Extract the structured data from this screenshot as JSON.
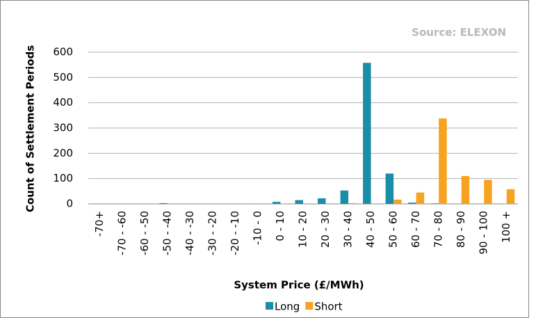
{
  "chart_data": {
    "type": "bar",
    "source": "Source: ELEXON",
    "y_label": "Count of Settlement Periods",
    "x_label": "System Price (£/MWh)",
    "categories": [
      "-70+",
      "-70 - -60",
      "-60 - -50",
      "-50 - -40",
      "-40 - -30",
      "-30 - -20",
      "-20 - -10",
      "-10 - 0",
      "0 - 10",
      "10 - 20",
      "20 - 30",
      "30 - 40",
      "40 - 50",
      "50 - 60",
      "60 - 70",
      "70 - 80",
      "80 - 90",
      "90 - 100",
      "100 +"
    ],
    "series": [
      {
        "name": "Long",
        "color": "#1a8ea8",
        "values": [
          0,
          0,
          0,
          3,
          0,
          0,
          0,
          1,
          8,
          15,
          22,
          53,
          558,
          120,
          5,
          2,
          0,
          0,
          0
        ]
      },
      {
        "name": "Short",
        "color": "#f7a320",
        "values": [
          0,
          0,
          0,
          0,
          0,
          0,
          0,
          0,
          0,
          0,
          2,
          3,
          0,
          17,
          45,
          338,
          110,
          95,
          58
        ]
      }
    ],
    "ylim": [
      0,
      600
    ],
    "yticks": [
      0,
      100,
      200,
      300,
      400,
      500,
      600
    ],
    "grid": true,
    "legend": "bottom"
  }
}
